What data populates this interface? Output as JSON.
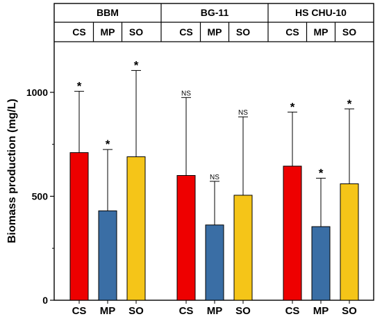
{
  "chart_data": {
    "type": "bar",
    "ylabel": "Biomass production (mg/L)",
    "ylim": [
      0,
      1200
    ],
    "y_ticks": [
      0,
      500,
      1000
    ],
    "y_tick_labels": [
      "0",
      "500",
      "1000"
    ],
    "grid": false,
    "colors": {
      "CS": "#ee0000",
      "MP": "#3a6ea5",
      "SO": "#f5c518"
    },
    "groups": [
      {
        "name": "BBM",
        "categories": [
          "CS",
          "MP",
          "SO"
        ],
        "values": [
          710,
          430,
          690
        ],
        "error_upper": [
          1005,
          725,
          1105
        ],
        "significance": [
          "*",
          "*",
          "*"
        ]
      },
      {
        "name": "BG-11",
        "categories": [
          "CS",
          "MP",
          "SO"
        ],
        "values": [
          600,
          362,
          505
        ],
        "error_upper": [
          975,
          572,
          882
        ],
        "significance": [
          "NS",
          "NS",
          "NS"
        ]
      },
      {
        "name": "HS CHU-10",
        "categories": [
          "CS",
          "MP",
          "SO"
        ],
        "values": [
          645,
          354,
          560
        ],
        "error_upper": [
          905,
          587,
          920
        ],
        "significance": [
          "*",
          "*",
          "*"
        ]
      }
    ]
  }
}
